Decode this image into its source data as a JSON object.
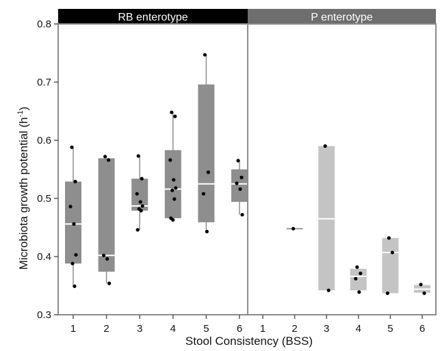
{
  "chart_data": {
    "type": "box",
    "ylabel": "Microbiota growth potential (h",
    "ylabel_sup": "-1",
    "ylabel_close": ")",
    "xlabel": "Stool Consistency (BSS)",
    "ylim": [
      0.3,
      0.8
    ],
    "yticks": [
      "0.3",
      "0.4",
      "0.5",
      "0.6",
      "0.7",
      "0.8"
    ],
    "ytick_values": [
      0.3,
      0.4,
      0.5,
      0.6,
      0.7,
      0.8
    ],
    "categories": [
      "1",
      "2",
      "3",
      "4",
      "5",
      "6"
    ],
    "colors": {
      "rb_box": "#8e8e8e",
      "p_box": "#c4c4c4",
      "rb_strip": "#000000",
      "p_strip": "#6e6e6e",
      "frame": "#8c8c8c",
      "median": "#ffffff",
      "point": "#000000"
    },
    "panels": [
      {
        "title": "RB enterotype",
        "groups": [
          {
            "x": "1",
            "q1": 0.388,
            "median": 0.456,
            "q3": 0.529,
            "whisker_low": 0.349,
            "whisker_high": 0.588,
            "points": [
              0.588,
              0.529,
              0.486,
              0.456,
              0.403,
              0.388,
              0.349
            ]
          },
          {
            "x": "2",
            "q1": 0.374,
            "median": 0.402,
            "q3": 0.569,
            "whisker_low": 0.354,
            "whisker_high": 0.572,
            "points": [
              0.572,
              0.566,
              0.402,
              0.396,
              0.354
            ]
          },
          {
            "x": "3",
            "q1": 0.479,
            "median": 0.487,
            "q3": 0.534,
            "whisker_low": 0.446,
            "whisker_high": 0.573,
            "points": [
              0.573,
              0.534,
              0.508,
              0.494,
              0.487,
              0.482,
              0.479,
              0.446
            ]
          },
          {
            "x": "4",
            "q1": 0.466,
            "median": 0.516,
            "q3": 0.583,
            "whisker_low": 0.463,
            "whisker_high": 0.648,
            "points": [
              0.648,
              0.641,
              0.566,
              0.532,
              0.518,
              0.514,
              0.499,
              0.466,
              0.463
            ]
          },
          {
            "x": "5",
            "q1": 0.459,
            "median": 0.525,
            "q3": 0.696,
            "whisker_low": 0.443,
            "whisker_high": 0.747,
            "points": [
              0.747,
              0.545,
              0.508,
              0.443
            ]
          },
          {
            "x": "6",
            "q1": 0.494,
            "median": 0.525,
            "q3": 0.55,
            "whisker_low": 0.472,
            "whisker_high": 0.565,
            "points": [
              0.565,
              0.536,
              0.526,
              0.516,
              0.472
            ]
          }
        ]
      },
      {
        "title": "P enterotype",
        "groups": [
          {
            "x": "1",
            "q1": null,
            "median": null,
            "q3": null,
            "whisker_low": null,
            "whisker_high": null,
            "points": []
          },
          {
            "x": "2",
            "q1": 0.448,
            "median": 0.448,
            "q3": 0.448,
            "whisker_low": 0.448,
            "whisker_high": 0.448,
            "points": [
              0.448
            ]
          },
          {
            "x": "3",
            "q1": 0.342,
            "median": 0.465,
            "q3": 0.59,
            "whisker_low": 0.342,
            "whisker_high": 0.59,
            "points": [
              0.59,
              0.342
            ]
          },
          {
            "x": "4",
            "q1": 0.342,
            "median": 0.366,
            "q3": 0.379,
            "whisker_low": 0.338,
            "whisker_high": 0.382,
            "points": [
              0.382,
              0.371,
              0.362,
              0.339
            ]
          },
          {
            "x": "5",
            "q1": 0.337,
            "median": 0.407,
            "q3": 0.432,
            "whisker_low": 0.337,
            "whisker_high": 0.432,
            "points": [
              0.432,
              0.407,
              0.337
            ]
          },
          {
            "x": "6",
            "q1": 0.338,
            "median": 0.344,
            "q3": 0.351,
            "whisker_low": 0.337,
            "whisker_high": 0.352,
            "points": [
              0.352,
              0.337
            ]
          }
        ]
      }
    ]
  }
}
